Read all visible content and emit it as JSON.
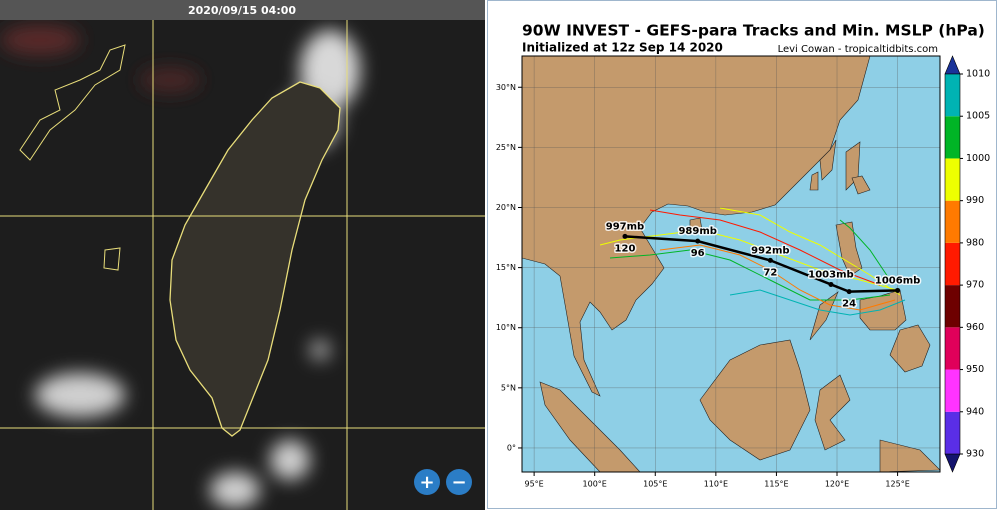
{
  "satellite": {
    "timestamp": "2020/09/15 04:00",
    "zoom_in": "+",
    "zoom_out": "−"
  },
  "chart_data": {
    "type": "line",
    "title": "90W INVEST - GEFS-para Tracks and Min. MSLP (hPa)",
    "subtitle": "Initialized at 12z Sep 14 2020",
    "credit": "Levi Cowan - tropicaltidbits.com",
    "xlim": [
      94,
      128.5
    ],
    "ylim": [
      -2,
      32.6
    ],
    "xticks": [
      {
        "value": 95,
        "label": "95°E"
      },
      {
        "value": 100,
        "label": "100°E"
      },
      {
        "value": 105,
        "label": "105°E"
      },
      {
        "value": 110,
        "label": "110°E"
      },
      {
        "value": 115,
        "label": "115°E"
      },
      {
        "value": 120,
        "label": "120°E"
      },
      {
        "value": 125,
        "label": "125°E"
      }
    ],
    "yticks": [
      {
        "value": 0,
        "label": "0°"
      },
      {
        "value": 5,
        "label": "5°N"
      },
      {
        "value": 10,
        "label": "10°N"
      },
      {
        "value": 15,
        "label": "15°N"
      },
      {
        "value": 20,
        "label": "20°N"
      },
      {
        "value": 25,
        "label": "25°N"
      },
      {
        "value": 30,
        "label": "30°N"
      }
    ],
    "grid": true,
    "series": [
      {
        "color": "#000000",
        "x": [
          125,
          121,
          119.5,
          114.5,
          108.5,
          102.5
        ],
        "values": [
          13.1,
          13.0,
          13.6,
          15.6,
          17.2,
          17.6
        ],
        "mslp_labels": [
          "1006mb",
          null,
          "1003mb",
          "992mb",
          "989mb",
          "997mb"
        ],
        "hour_labels": [
          null,
          24,
          null,
          72,
          96,
          120
        ]
      }
    ],
    "colorbar": {
      "ticks": [
        930,
        940,
        950,
        960,
        970,
        980,
        990,
        1000,
        1005,
        1010
      ],
      "colors": [
        "#5a2ee6",
        "#ff33ff",
        "#e0005a",
        "#6e0000",
        "#ff1a00",
        "#ff7a00",
        "#eeff00",
        "#00b526",
        "#00b3b3"
      ]
    }
  }
}
